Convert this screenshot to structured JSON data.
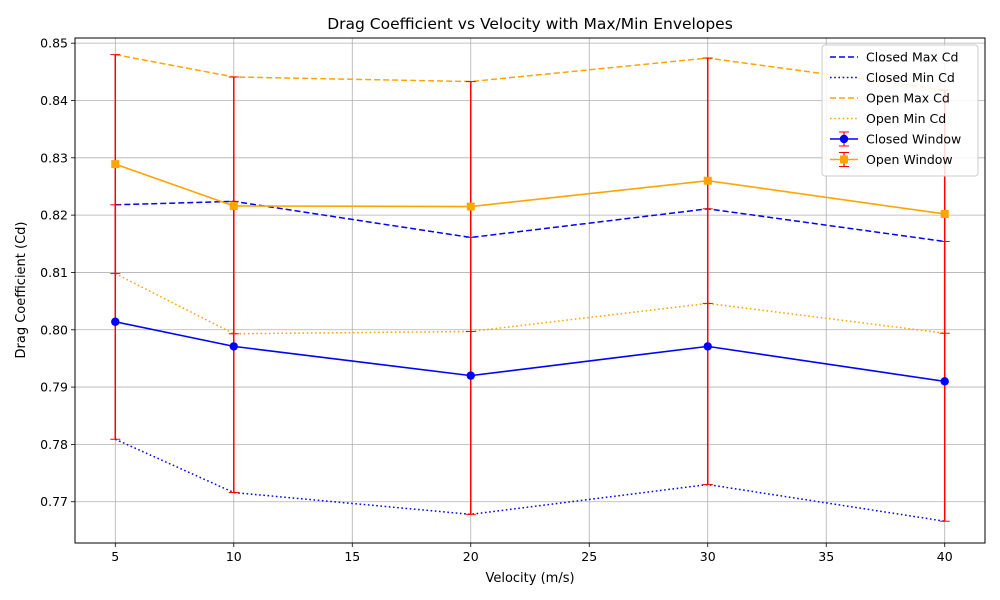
{
  "chart_data": {
    "type": "line",
    "title": "Drag Coefficient vs Velocity with Max/Min Envelopes",
    "xlabel": "Velocity (m/s)",
    "ylabel": "Drag Coefficient (Cd)",
    "xlim": [
      3.3,
      41.7
    ],
    "ylim": [
      0.7628,
      0.8509
    ],
    "x_ticks": [
      5,
      10,
      15,
      20,
      25,
      30,
      35,
      40
    ],
    "y_ticks": [
      0.77,
      0.78,
      0.79,
      0.8,
      0.81,
      0.82,
      0.83,
      0.84,
      0.85
    ],
    "y_tick_labels": [
      "0.77",
      "0.78",
      "0.79",
      "0.80",
      "0.81",
      "0.82",
      "0.83",
      "0.84",
      "0.85"
    ],
    "grid": true,
    "legend_position": "top-right",
    "x": [
      5,
      10,
      20,
      30,
      40
    ],
    "series": [
      {
        "name": "Closed Window",
        "kind": "mean",
        "color": "#0000ff",
        "line": "solid",
        "marker": "circle",
        "values": [
          0.8014,
          0.7971,
          0.792,
          0.7971,
          0.791
        ]
      },
      {
        "name": "Open Window",
        "kind": "mean",
        "color": "#ffa500",
        "line": "solid",
        "marker": "square",
        "values": [
          0.8289,
          0.8216,
          0.8215,
          0.826,
          0.8202
        ]
      },
      {
        "name": "Closed Max Cd",
        "kind": "envelope",
        "color": "#0000ff",
        "line": "dashed",
        "values": [
          0.8218,
          0.8224,
          0.8161,
          0.8211,
          0.8154
        ]
      },
      {
        "name": "Closed Min Cd",
        "kind": "envelope",
        "color": "#0000ff",
        "line": "dotted",
        "values": [
          0.7809,
          0.7716,
          0.7678,
          0.773,
          0.7666
        ]
      },
      {
        "name": "Open Max Cd",
        "kind": "envelope",
        "color": "#ffa500",
        "line": "dashed",
        "values": [
          0.848,
          0.8441,
          0.8433,
          0.8474,
          0.8418
        ]
      },
      {
        "name": "Open Min Cd",
        "kind": "envelope",
        "color": "#ffa500",
        "line": "dotted",
        "values": [
          0.8098,
          0.7993,
          0.7997,
          0.8046,
          0.7994
        ]
      }
    ],
    "error_bars": {
      "color": "#ff0000",
      "closed": {
        "lower": [
          0.7809,
          0.7716,
          0.7678,
          0.773,
          0.7666
        ],
        "upper": [
          0.8218,
          0.8224,
          0.8161,
          0.8211,
          0.8154
        ]
      },
      "open": {
        "lower": [
          0.8098,
          0.7993,
          0.7997,
          0.8046,
          0.7994
        ],
        "upper": [
          0.848,
          0.8441,
          0.8433,
          0.8474,
          0.8418
        ]
      }
    },
    "legend": [
      {
        "label": "Closed Max Cd",
        "color": "#0000ff",
        "line": "dashed",
        "marker": "none"
      },
      {
        "label": "Closed Min Cd",
        "color": "#0000ff",
        "line": "dotted",
        "marker": "none"
      },
      {
        "label": "Open Max Cd",
        "color": "#ffa500",
        "line": "dashed",
        "marker": "none"
      },
      {
        "label": "Open Min Cd",
        "color": "#ffa500",
        "line": "dotted",
        "marker": "none"
      },
      {
        "label": "Closed Window",
        "color": "#0000ff",
        "line": "solid",
        "marker": "circle"
      },
      {
        "label": "Open Window",
        "color": "#ffa500",
        "line": "solid",
        "marker": "square"
      }
    ]
  }
}
